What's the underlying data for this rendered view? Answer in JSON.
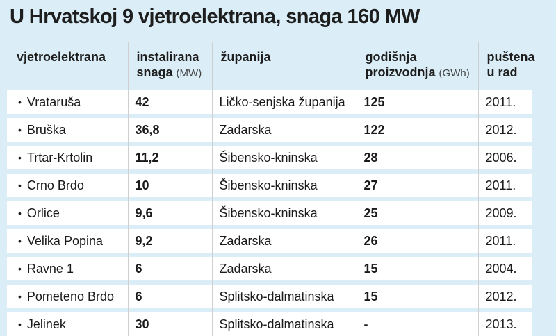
{
  "title": "U Hrvatskoj 9 vjetroelektrana, snaga 160 MW",
  "headers": {
    "name": "vjetroelektrana",
    "capacity_line1": "instalirana",
    "capacity_line2": "snaga",
    "capacity_unit": "(MW)",
    "county": "županija",
    "production_line1": "godišnja",
    "production_line2": "proizvodnja",
    "production_unit": "(GWh)",
    "year_line1": "puštena",
    "year_line2": "u rad"
  },
  "bullet": "•",
  "rows": [
    {
      "name": "Vrataruša",
      "capacity": "42",
      "county": "Ličko-senjska županija",
      "production": "125",
      "year": "2011."
    },
    {
      "name": "Bruška",
      "capacity": "36,8",
      "county": "Zadarska",
      "production": "122",
      "year": "2012."
    },
    {
      "name": "Trtar-Krtolin",
      "capacity": "11,2",
      "county": "Šibensko-kninska",
      "production": "28",
      "year": "2006."
    },
    {
      "name": "Crno Brdo",
      "capacity": "10",
      "county": "Šibensko-kninska",
      "production": "27",
      "year": "2011."
    },
    {
      "name": "Orlice",
      "capacity": "9,6",
      "county": "Šibensko-kninska",
      "production": "25",
      "year": "2009."
    },
    {
      "name": "Velika Popina",
      "capacity": "9,2",
      "county": "Zadarska",
      "production": "26",
      "year": "2011."
    },
    {
      "name": "Ravne 1",
      "capacity": "6",
      "county": "Zadarska",
      "production": "15",
      "year": "2004."
    },
    {
      "name": "Pometeno Brdo",
      "capacity": "6",
      "county": "Splitsko-dalmatinska",
      "production": "15",
      "year": "2012."
    },
    {
      "name": "Jelinek",
      "capacity": "30",
      "county": "Splitsko-dalmatinska",
      "production": "-",
      "year": "2013."
    }
  ]
}
